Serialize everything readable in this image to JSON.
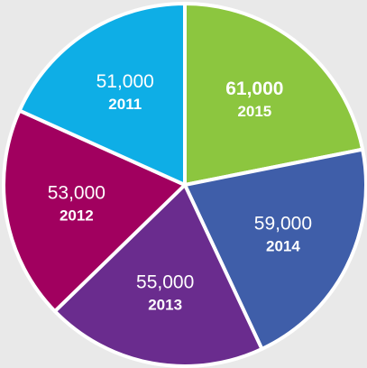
{
  "chart_data": {
    "type": "pie",
    "categories": [
      "2015",
      "2014",
      "2013",
      "2012",
      "2011"
    ],
    "values": [
      61000,
      59000,
      55000,
      53000,
      51000
    ],
    "value_labels": [
      "61,000",
      "59,000",
      "55,000",
      "53,000",
      "51,000"
    ],
    "colors": [
      "#8cc63f",
      "#3f5ea9",
      "#6a2c8e",
      "#a1005f",
      "#0eaee6"
    ]
  }
}
